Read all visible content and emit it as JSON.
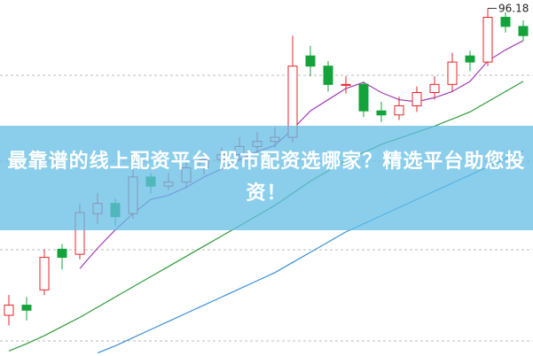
{
  "chart_data": {
    "type": "candlestick",
    "title": "最靠谱的线上配资平台 股市配资选哪家？精选平台助您投资！",
    "ylim": [
      62,
      97
    ],
    "up_color": "#e8232a",
    "down_color": "#14a33a",
    "open": [
      66.0,
      67.0,
      68.5,
      72.5,
      72.0,
      76.0,
      77.0,
      76.0,
      79.6,
      78.7,
      79.1,
      80.5,
      81.3,
      81.8,
      82.6,
      83.1,
      83.5,
      91.5,
      90.5,
      88.7,
      88.7,
      86.1,
      85.7,
      86.6,
      87.9,
      88.7,
      91.5,
      90.9,
      95.3,
      94.4
    ],
    "high": [
      68.0,
      67.8,
      72.5,
      73.0,
      77.0,
      78.0,
      77.5,
      80.5,
      80.0,
      80.0,
      81.2,
      82.0,
      82.5,
      83.5,
      84.0,
      84.5,
      93.5,
      92.5,
      91.0,
      89.5,
      89.0,
      87.0,
      87.5,
      88.5,
      89.5,
      91.8,
      92.0,
      96.18,
      95.8,
      95.0
    ],
    "low": [
      65.0,
      65.5,
      68.0,
      70.5,
      71.5,
      75.0,
      74.8,
      75.5,
      78.0,
      78.3,
      78.5,
      79.8,
      80.8,
      81.2,
      82.0,
      82.5,
      83.0,
      89.5,
      88.0,
      87.8,
      85.5,
      85.0,
      85.2,
      86.0,
      87.2,
      88.0,
      90.0,
      90.5,
      93.8,
      93.0
    ],
    "close": [
      67.0,
      66.5,
      71.7,
      71.7,
      76.1,
      77.0,
      75.7,
      79.6,
      78.7,
      79.1,
      80.5,
      81.3,
      81.8,
      82.6,
      83.1,
      83.5,
      90.5,
      90.5,
      88.7,
      88.7,
      86.1,
      85.7,
      86.6,
      87.9,
      88.7,
      90.9,
      90.9,
      95.3,
      94.4,
      93.5
    ],
    "lines": [
      {
        "color": "#a23bb5",
        "values": [
          null,
          null,
          null,
          null,
          70.6,
          72.6,
          74.4,
          76.0,
          77.4,
          77.8,
          78.6,
          79.6,
          80.4,
          81.3,
          82.1,
          82.7,
          84.3,
          86.1,
          87.2,
          88.3,
          88.9,
          87.9,
          87.2,
          87.0,
          87.4,
          88.0,
          89.0,
          91.0,
          92.1,
          93.0
        ]
      },
      {
        "color": "#2f9a3a",
        "values": [
          62.5,
          63.2,
          64.0,
          64.9,
          65.8,
          66.8,
          67.8,
          68.8,
          69.8,
          70.8,
          71.8,
          72.8,
          73.8,
          74.8,
          75.8,
          76.8,
          78.0,
          79.2,
          80.2,
          81.2,
          82.0,
          82.8,
          83.4,
          84.0,
          84.6,
          85.3,
          86.0,
          87.0,
          88.0,
          89.0
        ]
      },
      {
        "color": "#3a8fd6",
        "values": [
          null,
          null,
          null,
          null,
          null,
          62.3,
          63.0,
          63.8,
          64.6,
          65.4,
          66.2,
          67.0,
          67.8,
          68.6,
          69.4,
          70.2,
          71.2,
          72.2,
          73.2,
          74.2,
          75.0,
          75.8,
          76.6,
          77.4,
          78.2,
          79.0,
          79.8,
          80.6,
          81.4,
          82.2
        ]
      }
    ]
  }
}
